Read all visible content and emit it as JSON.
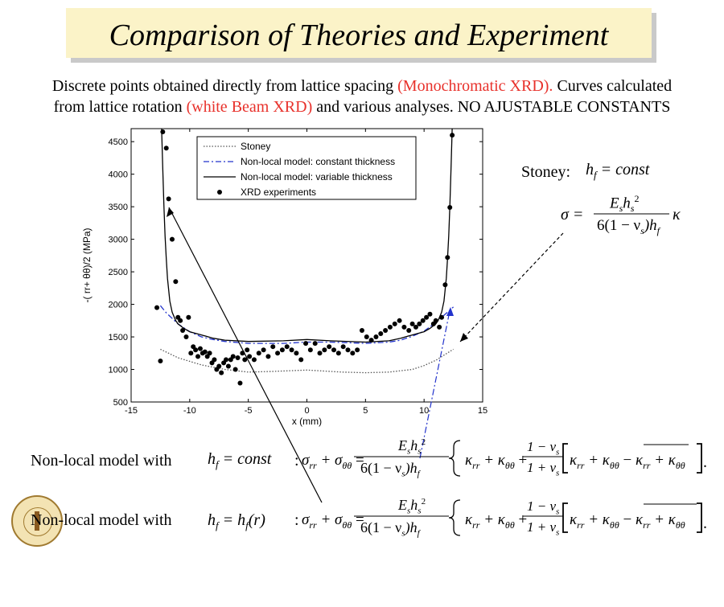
{
  "slide": {
    "title": "Comparison of Theories and Experiment",
    "subtitle_line1_a": "Discrete points obtained directly from lattice spacing ",
    "subtitle_line1_red": "(Monochromatic XRD).",
    "subtitle_line1_b": " Curves  calculated",
    "subtitle_line2_a": "from lattice rotation ",
    "subtitle_line2_red": "(white Beam XRD)",
    "subtitle_line2_b": "  and various analyses. NO AJUSTABLE CONSTANTS",
    "red_color": "#e8312b",
    "title_bg": "#fbf3c8"
  },
  "chart_data": {
    "type": "scatter",
    "xlabel": "x (mm)",
    "ylabel": "-(   rr+   θθ)/2 (MPa)",
    "xlim": [
      -15,
      15
    ],
    "ylim": [
      500,
      4700
    ],
    "xticks": [
      -15,
      -10,
      -5,
      0,
      5,
      10,
      15
    ],
    "yticks": [
      500,
      1000,
      1500,
      2000,
      2500,
      3000,
      3500,
      4000,
      4500
    ],
    "grid": false,
    "legend_position": "top-left",
    "legend": [
      "Stoney",
      "Non-local model: constant thickness",
      "Non-local model: variable thickness",
      "XRD experiments"
    ],
    "series": [
      {
        "name": "Stoney",
        "style": "dotted",
        "color": "#555555",
        "x": [
          -12.5,
          -11,
          -9,
          -7,
          -5,
          -3,
          0,
          3,
          5,
          7,
          9,
          10,
          11,
          12.5
        ],
        "y": [
          1310,
          1180,
          1070,
          1000,
          960,
          970,
          990,
          960,
          950,
          960,
          1000,
          1060,
          1140,
          1310
        ]
      },
      {
        "name": "Non-local model: constant thickness",
        "style": "dashdot",
        "color": "#2233cc",
        "x": [
          -12.5,
          -12,
          -11,
          -10,
          -9,
          -8,
          -7,
          -5,
          -2,
          0,
          2,
          5,
          7,
          8,
          9,
          10,
          11,
          12,
          12.5
        ],
        "y": [
          1980,
          1870,
          1700,
          1580,
          1500,
          1460,
          1430,
          1400,
          1400,
          1420,
          1420,
          1400,
          1420,
          1450,
          1510,
          1590,
          1720,
          1880,
          1960
        ]
      },
      {
        "name": "Non-local model: variable thickness",
        "style": "solid",
        "color": "#000000",
        "x": [
          -12.4,
          -12.3,
          -12.2,
          -12.1,
          -12,
          -11.9,
          -11.7,
          -11.5,
          -11.2,
          -11,
          -10.5,
          -10,
          -9,
          -8,
          -7,
          -5,
          -2,
          0,
          2,
          5,
          7,
          8,
          9,
          10,
          10.5,
          11,
          11.2,
          11.5,
          11.7,
          11.9,
          12,
          12.1,
          12.2,
          12.3,
          12.4
        ],
        "y": [
          4700,
          4100,
          3500,
          3050,
          2700,
          2400,
          2050,
          1880,
          1750,
          1700,
          1630,
          1580,
          1530,
          1480,
          1450,
          1430,
          1440,
          1460,
          1440,
          1420,
          1440,
          1480,
          1530,
          1580,
          1630,
          1700,
          1750,
          1880,
          2050,
          2400,
          2700,
          3050,
          3500,
          4100,
          4700
        ]
      },
      {
        "name": "XRD experiments",
        "style": "points",
        "color": "#000000",
        "x": [
          -12.8,
          -12.5,
          -12.3,
          -12.0,
          -11.8,
          -11.5,
          -11.2,
          -11.0,
          -10.8,
          -10.6,
          -10.3,
          -10.1,
          -9.9,
          -9.7,
          -9.5,
          -9.3,
          -9.1,
          -8.9,
          -8.7,
          -8.5,
          -8.3,
          -8.1,
          -7.9,
          -7.7,
          -7.5,
          -7.3,
          -7.1,
          -6.9,
          -6.7,
          -6.5,
          -6.3,
          -6.1,
          -5.9,
          -5.7,
          -5.5,
          -5.3,
          -5.1,
          -4.9,
          -4.5,
          -4.1,
          -3.7,
          -3.3,
          -2.9,
          -2.5,
          -2.1,
          -1.7,
          -1.3,
          -0.9,
          -0.5,
          -0.1,
          0.3,
          0.7,
          1.1,
          1.5,
          1.9,
          2.3,
          2.7,
          3.1,
          3.5,
          3.9,
          4.3,
          4.7,
          5.1,
          5.5,
          5.9,
          6.3,
          6.7,
          7.1,
          7.5,
          7.9,
          8.3,
          8.7,
          9.0,
          9.3,
          9.6,
          9.9,
          10.2,
          10.5,
          10.8,
          11.0,
          11.3,
          11.5,
          11.8,
          12.0,
          12.2,
          12.4
        ],
        "y": [
          1950,
          1130,
          4650,
          4400,
          3620,
          3000,
          2350,
          1800,
          1750,
          1600,
          1500,
          1800,
          1250,
          1350,
          1300,
          1200,
          1320,
          1250,
          1270,
          1200,
          1250,
          1100,
          1150,
          1000,
          1050,
          950,
          1100,
          1150,
          1050,
          1150,
          1200,
          1000,
          1180,
          790,
          1250,
          1150,
          1300,
          1200,
          1150,
          1250,
          1300,
          1200,
          1350,
          1250,
          1300,
          1350,
          1300,
          1250,
          1150,
          1400,
          1300,
          1400,
          1250,
          1300,
          1350,
          1300,
          1250,
          1350,
          1300,
          1250,
          1300,
          1600,
          1500,
          1450,
          1500,
          1550,
          1600,
          1650,
          1700,
          1750,
          1650,
          1600,
          1700,
          1650,
          1700,
          1750,
          1800,
          1850,
          1700,
          1750,
          1650,
          1800,
          2300,
          2720,
          3490,
          4600
        ]
      }
    ]
  },
  "annotations": {
    "stoney_label": "Stoney:",
    "stoney_hf": "h",
    "stoney_hf_sub": "f",
    "stoney_eq": " = const",
    "sigma": "σ =",
    "frac_num": "E",
    "frac_num_sub": "s",
    "frac_num_h": "h",
    "frac_num_h_sub": "s",
    "frac_num_sup": "2",
    "frac_den": "6(1 − ν",
    "frac_den_sub": "s",
    "frac_den_rest": ")h",
    "frac_den_sub2": "f",
    "kappa": "κ",
    "nonlocal_label_1": "Non-local  model with",
    "hf_const": " = const",
    "nonlocal_label_2": "Non-local  model with",
    "hf_r": " = h",
    "hf_r2": "(r)",
    "eq_lhs": "σ",
    "eq_lhs_rr": "rr",
    "eq_plus": " + σ",
    "eq_lhs_tt": "θθ",
    "eq_equals": " = ",
    "brace_open": "{",
    "brace_close": "}",
    "k_rr": "κ",
    "k_rr_sub": "rr",
    "k_plus": " + κ",
    "k_tt_sub": "θθ",
    "plus": " + ",
    "nu_frac_num": "1 − ν",
    "nu_frac_den": "1 + ν",
    "nu_sub": "s",
    "minus_bar": " − ",
    "bracket_open": "[",
    "bracket_close": "]",
    "colon": ":",
    "period": "."
  }
}
